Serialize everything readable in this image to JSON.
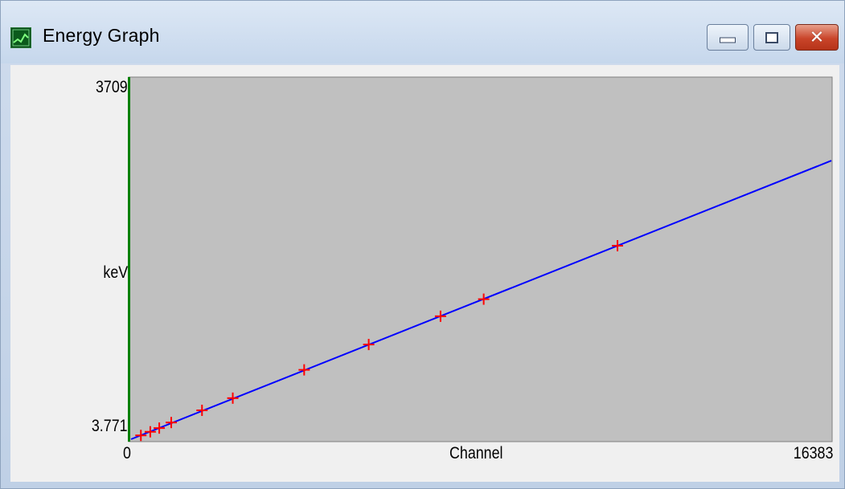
{
  "window": {
    "title": "Energy Graph",
    "icon": "graph-icon",
    "controls": {
      "minimize": "minimize-icon",
      "maximize": "maximize-icon",
      "close": "close-icon"
    }
  },
  "chart_data": {
    "type": "line",
    "xlabel": "Channel",
    "ylabel": "keV",
    "xlim": [
      0,
      16383
    ],
    "ylim": [
      3.771,
      3709
    ],
    "x_tick_labels": [
      "0",
      "16383"
    ],
    "y_tick_labels": [
      "3709",
      "3.771"
    ],
    "grid": false,
    "line": {
      "x": [
        0,
        16383
      ],
      "y": [
        3.771,
        2860
      ]
    },
    "points": [
      {
        "x": 230,
        "y": 43
      },
      {
        "x": 450,
        "y": 80
      },
      {
        "x": 660,
        "y": 118
      },
      {
        "x": 940,
        "y": 175
      },
      {
        "x": 1660,
        "y": 300
      },
      {
        "x": 2380,
        "y": 425
      },
      {
        "x": 4050,
        "y": 715
      },
      {
        "x": 5560,
        "y": 975
      },
      {
        "x": 7240,
        "y": 1265
      },
      {
        "x": 8250,
        "y": 1440
      },
      {
        "x": 11380,
        "y": 1988
      }
    ],
    "colors": {
      "background": "#c0c0c0",
      "line": "#0000ff",
      "points": "#ff0000",
      "y_axis_bar": "#008000"
    }
  }
}
